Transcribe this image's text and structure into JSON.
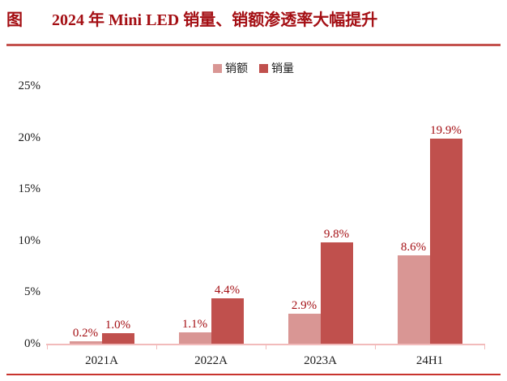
{
  "figure": {
    "prefix": "图",
    "title": "2024 年 Mini LED 销量、销额渗透率大幅提升"
  },
  "colors": {
    "title_red": "#A40F14",
    "data_label_red": "#A40F14",
    "axis_line_pink": "#F2BBBB",
    "title_rule_red": "#C4524E",
    "bottom_rule_red": "#C8342E",
    "axis_text_black": "#1A1A1A"
  },
  "chart_data": {
    "type": "bar",
    "title": "2024 年 Mini LED 销量、销额渗透率大幅提升",
    "categories": [
      "2021A",
      "2022A",
      "2023A",
      "24H1"
    ],
    "series": [
      {
        "name": "销额",
        "color": "#D99694",
        "values": [
          0.2,
          1.1,
          2.9,
          8.6
        ]
      },
      {
        "name": "销量",
        "color": "#C0504D",
        "values": [
          1.0,
          4.4,
          9.8,
          19.9
        ]
      }
    ],
    "data_labels": [
      [
        "0.2%",
        "1.1%",
        "2.9%",
        "8.6%"
      ],
      [
        "1.0%",
        "4.4%",
        "9.8%",
        "19.9%"
      ]
    ],
    "xlabel": "",
    "ylabel": "",
    "y_ticks": [
      "0%",
      "5%",
      "10%",
      "15%",
      "20%",
      "25%"
    ],
    "ylim": [
      0,
      25
    ],
    "grid": false,
    "legend_position": "top-center"
  }
}
